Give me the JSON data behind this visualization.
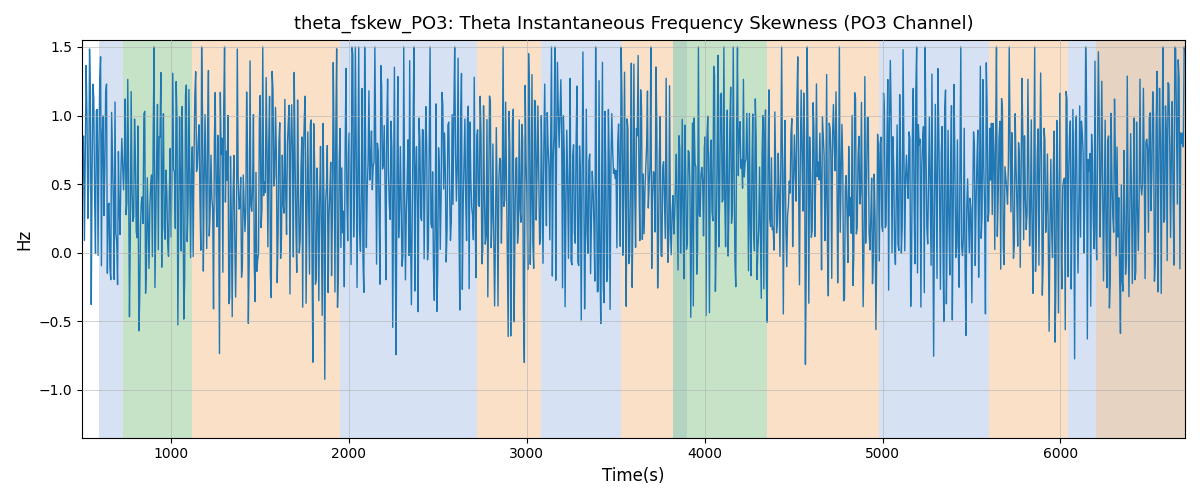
{
  "title": "theta_fskew_PO3: Theta Instantaneous Frequency Skewness (PO3 Channel)",
  "xlabel": "Time(s)",
  "ylabel": "Hz",
  "xlim": [
    500,
    6700
  ],
  "ylim": [
    -1.35,
    1.55
  ],
  "yticks": [
    -1.0,
    -0.5,
    0.0,
    0.5,
    1.0,
    1.5
  ],
  "xticks": [
    1000,
    2000,
    3000,
    4000,
    5000,
    6000
  ],
  "line_color": "#1f77b4",
  "line_width": 1.0,
  "bg_color": "#ffffff",
  "grid_color": "#b0b0b0",
  "bands": [
    {
      "xmin": 595,
      "xmax": 730,
      "color": "#aec6e8",
      "alpha": 0.5
    },
    {
      "xmin": 730,
      "xmax": 1120,
      "color": "#90c890",
      "alpha": 0.5
    },
    {
      "xmin": 1120,
      "xmax": 1950,
      "color": "#f5c899",
      "alpha": 0.55
    },
    {
      "xmin": 1950,
      "xmax": 2170,
      "color": "#aec6e8",
      "alpha": 0.5
    },
    {
      "xmin": 2170,
      "xmax": 2720,
      "color": "#aec6e8",
      "alpha": 0.5
    },
    {
      "xmin": 2720,
      "xmax": 3080,
      "color": "#f5c899",
      "alpha": 0.55
    },
    {
      "xmin": 3080,
      "xmax": 3530,
      "color": "#aec6e8",
      "alpha": 0.5
    },
    {
      "xmin": 3530,
      "xmax": 3820,
      "color": "#f5c899",
      "alpha": 0.55
    },
    {
      "xmin": 3820,
      "xmax": 3900,
      "color": "#aec6e8",
      "alpha": 0.5
    },
    {
      "xmin": 3820,
      "xmax": 4350,
      "color": "#90c890",
      "alpha": 0.5
    },
    {
      "xmin": 4350,
      "xmax": 4980,
      "color": "#f5c899",
      "alpha": 0.55
    },
    {
      "xmin": 4980,
      "xmax": 5600,
      "color": "#aec6e8",
      "alpha": 0.5
    },
    {
      "xmin": 5600,
      "xmax": 6040,
      "color": "#f5c899",
      "alpha": 0.55
    },
    {
      "xmin": 6040,
      "xmax": 6700,
      "color": "#aec6e8",
      "alpha": 0.5
    },
    {
      "xmin": 6200,
      "xmax": 6700,
      "color": "#f5c899",
      "alpha": 0.55
    }
  ],
  "seed": 12345,
  "n_points": 1300,
  "t_start": 500,
  "t_end": 6700
}
